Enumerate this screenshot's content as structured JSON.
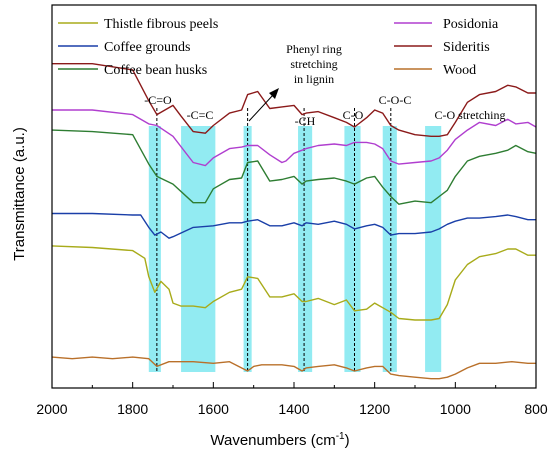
{
  "chart_data": {
    "type": "line",
    "xlabel": "Wavenumbers (cm",
    "xlabel_sup": "-1",
    "xlabel_end": ")",
    "ylabel": "Transmittance (a.u.)",
    "xlim": [
      2000,
      800
    ],
    "x_reversed": true,
    "x_ticks": [
      "2000",
      "1800",
      "1600",
      "1400",
      "1200",
      "1000",
      "800"
    ],
    "y_ticks_shown": false,
    "legend_left": [
      "Thistle fibrous peels",
      "Coffee grounds",
      "Coffee bean husks"
    ],
    "legend_right": [
      "Posidonia",
      "Sideritis",
      "Wood"
    ],
    "bands": [
      {
        "from": 1760,
        "to": 1730
      },
      {
        "from": 1680,
        "to": 1595
      },
      {
        "from": 1525,
        "to": 1505
      },
      {
        "from": 1390,
        "to": 1355
      },
      {
        "from": 1275,
        "to": 1235
      },
      {
        "from": 1180,
        "to": 1145
      },
      {
        "from": 1075,
        "to": 1035
      }
    ],
    "reference_lines": [
      1740,
      1515,
      1375,
      1250,
      1160
    ],
    "annotations": {
      "co": "-C=O",
      "cc": "-C=C",
      "phenyl_1": "Phenyl ring",
      "phenyl_2": "stretching",
      "phenyl_3": "in lignin",
      "ch": "-CH",
      "c_o": "C-O",
      "coc": "C-O-C",
      "co_stretch": "C-O stretching"
    },
    "series": [
      {
        "name": "Sideritis",
        "color": "#8B1A1A",
        "x": [
          2000,
          1900,
          1800,
          1760,
          1740,
          1700,
          1680,
          1650,
          1620,
          1600,
          1560,
          1530,
          1515,
          1490,
          1460,
          1430,
          1400,
          1380,
          1370,
          1340,
          1300,
          1270,
          1250,
          1220,
          1200,
          1180,
          1160,
          1140,
          1100,
          1060,
          1040,
          1020,
          1000,
          970,
          940,
          900,
          870,
          850,
          820,
          800
        ],
        "y": [
          8.5,
          8.5,
          8.3,
          7.3,
          6.85,
          7.15,
          6.8,
          6.3,
          6.25,
          6.5,
          6.9,
          7.0,
          7.5,
          7.6,
          7.05,
          7.1,
          7.15,
          6.85,
          6.9,
          6.95,
          6.75,
          6.6,
          6.45,
          6.75,
          7.0,
          6.9,
          6.5,
          6.35,
          6.2,
          6.15,
          6.15,
          6.2,
          6.6,
          7.25,
          7.5,
          7.6,
          7.8,
          7.75,
          7.55,
          7.55
        ]
      },
      {
        "name": "Posidonia",
        "color": "#B03ECF",
        "x": [
          2000,
          1900,
          1800,
          1760,
          1740,
          1700,
          1650,
          1620,
          1600,
          1560,
          1530,
          1515,
          1490,
          1460,
          1430,
          1420,
          1400,
          1380,
          1370,
          1340,
          1300,
          1270,
          1250,
          1220,
          1200,
          1180,
          1160,
          1140,
          1100,
          1060,
          1040,
          1020,
          1000,
          970,
          940,
          900,
          870,
          850,
          820,
          800
        ],
        "y": [
          7.0,
          7.0,
          6.85,
          6.55,
          6.5,
          6.15,
          5.3,
          5.2,
          5.45,
          5.75,
          5.8,
          5.85,
          5.85,
          5.55,
          5.3,
          5.35,
          5.6,
          5.7,
          5.75,
          5.85,
          5.9,
          5.85,
          5.95,
          5.95,
          5.9,
          5.75,
          5.35,
          5.25,
          5.3,
          5.35,
          5.45,
          5.7,
          6.05,
          6.35,
          6.6,
          6.5,
          6.7,
          6.55,
          6.6,
          6.45
        ]
      },
      {
        "name": "Coffee bean husks",
        "color": "#2E7D32",
        "x": [
          2000,
          1900,
          1800,
          1760,
          1740,
          1700,
          1650,
          1620,
          1600,
          1560,
          1530,
          1515,
          1490,
          1460,
          1430,
          1400,
          1380,
          1370,
          1340,
          1300,
          1270,
          1250,
          1220,
          1200,
          1180,
          1160,
          1140,
          1100,
          1060,
          1040,
          1020,
          1000,
          970,
          940,
          900,
          870,
          850,
          820,
          800
        ],
        "y": [
          6.35,
          6.3,
          6.2,
          5.25,
          4.85,
          4.6,
          4.0,
          4.0,
          4.45,
          4.75,
          4.8,
          5.3,
          5.35,
          4.7,
          4.75,
          4.85,
          4.6,
          4.7,
          4.75,
          4.8,
          4.7,
          4.6,
          4.8,
          4.85,
          4.5,
          4.2,
          3.95,
          4.05,
          4.0,
          4.2,
          4.4,
          4.85,
          5.35,
          5.5,
          5.6,
          5.7,
          5.85,
          5.65,
          5.6
        ]
      },
      {
        "name": "Coffee grounds",
        "color": "#1A3FA8",
        "x": [
          2000,
          1900,
          1800,
          1780,
          1760,
          1745,
          1730,
          1710,
          1700,
          1650,
          1600,
          1560,
          1530,
          1515,
          1490,
          1460,
          1430,
          1400,
          1380,
          1370,
          1340,
          1300,
          1270,
          1250,
          1220,
          1200,
          1180,
          1160,
          1140,
          1100,
          1060,
          1040,
          1020,
          1000,
          970,
          940,
          900,
          870,
          850,
          820,
          800
        ],
        "y": [
          3.65,
          3.65,
          3.6,
          3.6,
          3.2,
          2.95,
          3.05,
          2.85,
          2.9,
          3.2,
          3.25,
          3.35,
          3.35,
          3.4,
          3.45,
          3.25,
          3.25,
          3.35,
          3.25,
          3.35,
          3.3,
          3.4,
          3.3,
          3.15,
          3.25,
          3.3,
          3.2,
          2.95,
          3.0,
          3.0,
          3.05,
          3.15,
          3.3,
          3.4,
          3.5,
          3.5,
          3.55,
          3.6,
          3.55,
          3.45,
          3.45
        ]
      },
      {
        "name": "Thistle fibrous peels",
        "color": "#A8AB1A",
        "x": [
          2000,
          1900,
          1800,
          1770,
          1760,
          1745,
          1730,
          1710,
          1700,
          1680,
          1650,
          1620,
          1600,
          1560,
          1530,
          1515,
          1490,
          1460,
          1430,
          1400,
          1380,
          1370,
          1340,
          1300,
          1270,
          1250,
          1220,
          1200,
          1180,
          1160,
          1140,
          1100,
          1060,
          1040,
          1020,
          1000,
          970,
          940,
          900,
          870,
          850,
          820,
          800
        ],
        "y": [
          2.6,
          2.55,
          2.45,
          2.2,
          1.6,
          1.1,
          1.45,
          1.2,
          0.75,
          0.65,
          0.65,
          0.6,
          0.8,
          1.1,
          1.2,
          1.6,
          1.55,
          0.95,
          0.95,
          1.05,
          0.8,
          0.8,
          0.9,
          0.7,
          0.85,
          0.5,
          0.55,
          0.75,
          0.6,
          0.45,
          0.25,
          0.2,
          0.2,
          0.25,
          0.7,
          1.5,
          2.0,
          2.25,
          2.35,
          2.5,
          2.5,
          2.3,
          2.3
        ]
      },
      {
        "name": "Wood",
        "color": "#B9702A",
        "x": [
          2000,
          1950,
          1900,
          1850,
          1800,
          1760,
          1740,
          1710,
          1650,
          1600,
          1560,
          1515,
          1500,
          1480,
          1460,
          1430,
          1400,
          1380,
          1370,
          1340,
          1300,
          1270,
          1250,
          1220,
          1200,
          1180,
          1160,
          1140,
          1100,
          1060,
          1040,
          1020,
          1000,
          970,
          940,
          900,
          860,
          820,
          800
        ],
        "y": [
          -1.0,
          -1.05,
          -1.0,
          -1.05,
          -1.0,
          -1.05,
          -1.3,
          -1.15,
          -1.15,
          -1.2,
          -1.15,
          -1.45,
          -1.3,
          -1.25,
          -1.25,
          -1.25,
          -1.3,
          -1.45,
          -1.35,
          -1.3,
          -1.25,
          -1.35,
          -1.45,
          -1.35,
          -1.3,
          -1.3,
          -1.55,
          -1.6,
          -1.65,
          -1.7,
          -1.7,
          -1.65,
          -1.55,
          -1.35,
          -1.2,
          -1.2,
          -1.15,
          -1.2,
          -1.2
        ]
      }
    ],
    "ylim": [
      -2.0,
      10.4
    ]
  }
}
